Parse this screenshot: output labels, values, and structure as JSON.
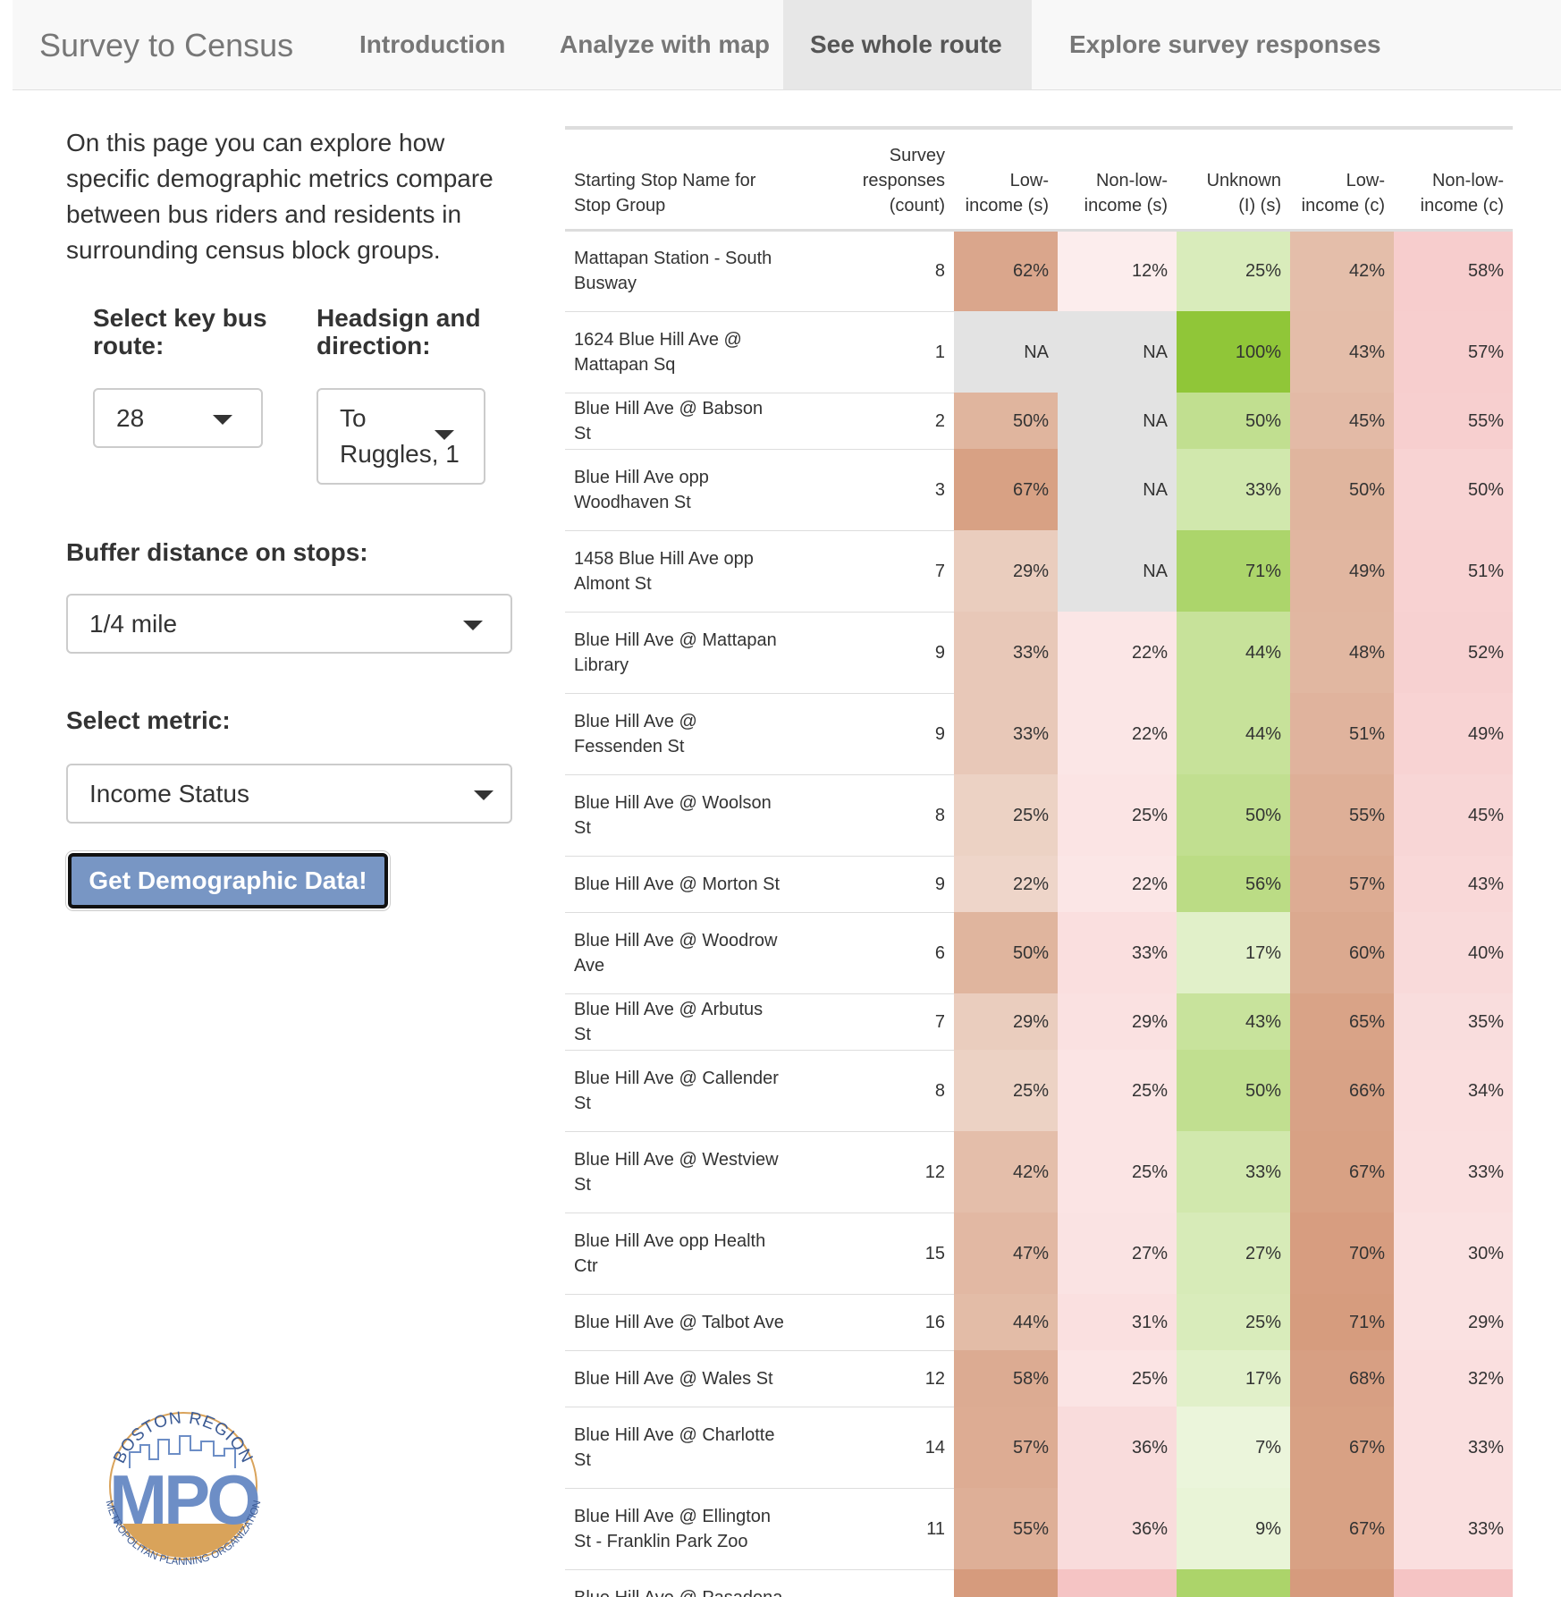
{
  "navbar": {
    "brand": "Survey to Census",
    "tabs": [
      {
        "label": "Introduction",
        "active": false
      },
      {
        "label": "Analyze with map",
        "active": false
      },
      {
        "label": "See whole route",
        "active": true
      },
      {
        "label": "Explore survey responses",
        "active": false
      }
    ]
  },
  "sidebar": {
    "intro": "On this page you can explore how specific demographic metrics compare between bus riders and residents in surrounding census block groups.",
    "route_label": "Select key bus route:",
    "route_value": "28",
    "headsign_label": "Headsign and direction:",
    "headsign_value": "To Ruggles, 1",
    "buffer_label": "Buffer distance on stops:",
    "buffer_value": "1/4 mile",
    "metric_label": "Select metric:",
    "metric_value": "Income Status",
    "button_label": "Get Demographic Data!",
    "logo": {
      "top_text": "BOSTON REGION",
      "main_text": "MPO",
      "bottom_text": "METROPOLITAN PLANNING ORGANIZATION"
    }
  },
  "table": {
    "colors": {
      "na": "#e3e3e3",
      "survey_low_income": "#c87a52",
      "survey_non_low_income": "#f2b0b0",
      "unknown": "#90c638",
      "census_low_income": "#c87a52",
      "census_non_low_income": "#f2b0b0"
    },
    "headers": [
      "Starting Stop Name for Stop Group",
      "Survey responses (count)",
      "Low-income (s)",
      "Non-low-income (s)",
      "Unknown (I) (s)",
      "Low-income (c)",
      "Non-low-income (c)"
    ],
    "rows": [
      {
        "name": "Mattapan Station - South Busway",
        "count": "8",
        "low_s": "62%",
        "nonlow_s": "12%",
        "unknown_s": "25%",
        "low_c": "42%",
        "nonlow_c": "58%"
      },
      {
        "name": "1624 Blue Hill Ave @ Mattapan Sq",
        "count": "1",
        "low_s": "NA",
        "nonlow_s": "NA",
        "unknown_s": "100%",
        "low_c": "43%",
        "nonlow_c": "57%"
      },
      {
        "name": "Blue Hill Ave @ Babson St",
        "count": "2",
        "low_s": "50%",
        "nonlow_s": "NA",
        "unknown_s": "50%",
        "low_c": "45%",
        "nonlow_c": "55%"
      },
      {
        "name": "Blue Hill Ave opp Woodhaven St",
        "count": "3",
        "low_s": "67%",
        "nonlow_s": "NA",
        "unknown_s": "33%",
        "low_c": "50%",
        "nonlow_c": "50%"
      },
      {
        "name": "1458 Blue Hill Ave opp Almont St",
        "count": "7",
        "low_s": "29%",
        "nonlow_s": "NA",
        "unknown_s": "71%",
        "low_c": "49%",
        "nonlow_c": "51%"
      },
      {
        "name": "Blue Hill Ave @ Mattapan Library",
        "count": "9",
        "low_s": "33%",
        "nonlow_s": "22%",
        "unknown_s": "44%",
        "low_c": "48%",
        "nonlow_c": "52%"
      },
      {
        "name": "Blue Hill Ave @ Fessenden St",
        "count": "9",
        "low_s": "33%",
        "nonlow_s": "22%",
        "unknown_s": "44%",
        "low_c": "51%",
        "nonlow_c": "49%"
      },
      {
        "name": "Blue Hill Ave @ Woolson St",
        "count": "8",
        "low_s": "25%",
        "nonlow_s": "25%",
        "unknown_s": "50%",
        "low_c": "55%",
        "nonlow_c": "45%"
      },
      {
        "name": "Blue Hill Ave @ Morton St",
        "count": "9",
        "low_s": "22%",
        "nonlow_s": "22%",
        "unknown_s": "56%",
        "low_c": "57%",
        "nonlow_c": "43%"
      },
      {
        "name": "Blue Hill Ave @ Woodrow Ave",
        "count": "6",
        "low_s": "50%",
        "nonlow_s": "33%",
        "unknown_s": "17%",
        "low_c": "60%",
        "nonlow_c": "40%"
      },
      {
        "name": "Blue Hill Ave @ Arbutus St",
        "count": "7",
        "low_s": "29%",
        "nonlow_s": "29%",
        "unknown_s": "43%",
        "low_c": "65%",
        "nonlow_c": "35%"
      },
      {
        "name": "Blue Hill Ave @ Callender St",
        "count": "8",
        "low_s": "25%",
        "nonlow_s": "25%",
        "unknown_s": "50%",
        "low_c": "66%",
        "nonlow_c": "34%"
      },
      {
        "name": "Blue Hill Ave @ Westview St",
        "count": "12",
        "low_s": "42%",
        "nonlow_s": "25%",
        "unknown_s": "33%",
        "low_c": "67%",
        "nonlow_c": "33%"
      },
      {
        "name": "Blue Hill Ave opp Health Ctr",
        "count": "15",
        "low_s": "47%",
        "nonlow_s": "27%",
        "unknown_s": "27%",
        "low_c": "70%",
        "nonlow_c": "30%"
      },
      {
        "name": "Blue Hill Ave @ Talbot Ave",
        "count": "16",
        "low_s": "44%",
        "nonlow_s": "31%",
        "unknown_s": "25%",
        "low_c": "71%",
        "nonlow_c": "29%"
      },
      {
        "name": "Blue Hill Ave @ Wales St",
        "count": "12",
        "low_s": "58%",
        "nonlow_s": "25%",
        "unknown_s": "17%",
        "low_c": "68%",
        "nonlow_c": "32%"
      },
      {
        "name": "Blue Hill Ave @ Charlotte St",
        "count": "14",
        "low_s": "57%",
        "nonlow_s": "36%",
        "unknown_s": "7%",
        "low_c": "67%",
        "nonlow_c": "33%"
      },
      {
        "name": "Blue Hill Ave @ Ellington St - Franklin Park Zoo",
        "count": "11",
        "low_s": "55%",
        "nonlow_s": "36%",
        "unknown_s": "9%",
        "low_c": "67%",
        "nonlow_c": "33%"
      },
      {
        "name": "Blue Hill Ave @ Pasadena",
        "count": "",
        "low_s": "",
        "nonlow_s": "",
        "unknown_s": "",
        "low_c": "",
        "nonlow_c": ""
      }
    ]
  }
}
